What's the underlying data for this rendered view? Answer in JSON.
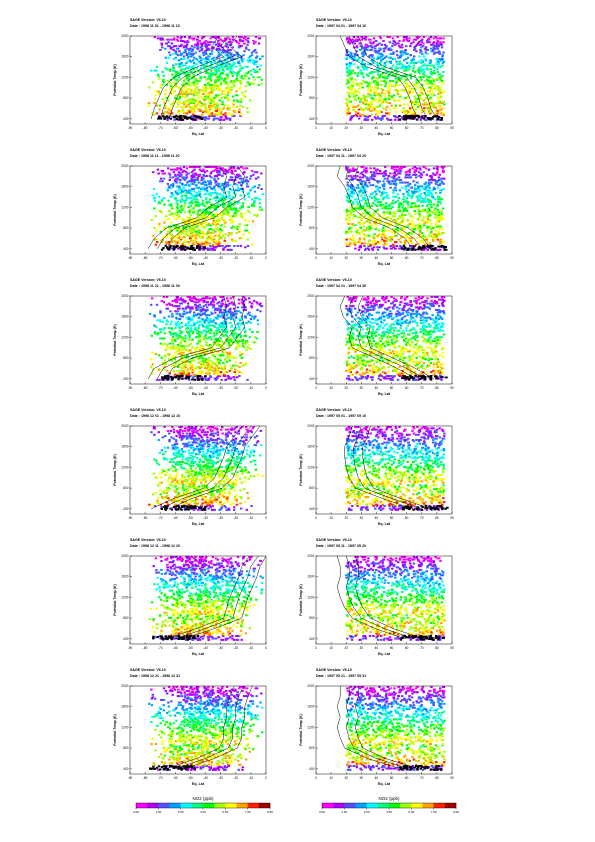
{
  "chart_data": {
    "type": "scatter",
    "description_free": true,
    "panel_common": {
      "title_prefix": "SAGE Version: ",
      "date_prefix": "Date : ",
      "xlabel": "Eq. Lat",
      "ylabel": "Potential Temp (K)",
      "yticks": [
        400,
        800,
        1200,
        1600,
        2000
      ],
      "ylim": [
        300,
        2000
      ]
    },
    "left_xlim": [
      -90,
      0
    ],
    "left_xticks": [
      -90,
      -80,
      -70,
      -60,
      -50,
      -40,
      -30,
      -20,
      -10,
      0
    ],
    "right_xlim": [
      0,
      90
    ],
    "right_xticks": [
      0,
      10,
      20,
      30,
      40,
      50,
      60,
      70,
      80,
      90
    ],
    "panels": [
      {
        "side": "left",
        "version": "V6.10",
        "date": "1998 11 01 - 1998 11 10",
        "band_eqlat": -57,
        "mean_lines": [
          [
            -25,
            2000
          ],
          [
            -30,
            1800
          ],
          [
            -22,
            1600
          ],
          [
            -40,
            1400
          ],
          [
            -55,
            1200
          ],
          [
            -62,
            1000
          ],
          [
            -65,
            800
          ],
          [
            -68,
            600
          ],
          [
            -70,
            400
          ]
        ]
      },
      {
        "side": "right",
        "version": "V6.10",
        "date": "1997 04 01 - 1997 04 10",
        "band_eqlat": 70,
        "mean_lines": [
          [
            22,
            2000
          ],
          [
            25,
            1800
          ],
          [
            28,
            1600
          ],
          [
            40,
            1400
          ],
          [
            60,
            1200
          ],
          [
            65,
            1000
          ],
          [
            68,
            800
          ],
          [
            70,
            600
          ],
          [
            74,
            400
          ]
        ]
      },
      {
        "side": "left",
        "version": "V6.10",
        "date": "1998 11 11 - 1998 11 20",
        "band_eqlat": -55,
        "mean_lines": [
          [
            -25,
            2000
          ],
          [
            -20,
            1800
          ],
          [
            -22,
            1600
          ],
          [
            -20,
            1400
          ],
          [
            -32,
            1200
          ],
          [
            -40,
            1000
          ],
          [
            -60,
            800
          ],
          [
            -68,
            600
          ],
          [
            -72,
            400
          ]
        ]
      },
      {
        "side": "right",
        "version": "V6.10",
        "date": "1997 04 11 - 1997 04 20",
        "band_eqlat": 72,
        "mean_lines": [
          [
            22,
            2000
          ],
          [
            20,
            1800
          ],
          [
            25,
            1600
          ],
          [
            28,
            1400
          ],
          [
            30,
            1200
          ],
          [
            38,
            1000
          ],
          [
            55,
            800
          ],
          [
            65,
            600
          ],
          [
            70,
            400
          ]
        ]
      },
      {
        "side": "left",
        "version": "V6.10",
        "date": "1998 11 21 - 1998 11 30",
        "band_eqlat": -55,
        "mean_lines": [
          [
            -22,
            2000
          ],
          [
            -20,
            1800
          ],
          [
            -22,
            1600
          ],
          [
            -20,
            1400
          ],
          [
            -25,
            1200
          ],
          [
            -30,
            1000
          ],
          [
            -55,
            800
          ],
          [
            -68,
            600
          ],
          [
            -72,
            400
          ]
        ]
      },
      {
        "side": "right",
        "version": "V6.10",
        "date": "1997 04 21 - 1997 04 30",
        "band_eqlat": 72,
        "mean_lines": [
          [
            25,
            2000
          ],
          [
            22,
            1800
          ],
          [
            24,
            1600
          ],
          [
            30,
            1400
          ],
          [
            28,
            1200
          ],
          [
            30,
            1000
          ],
          [
            45,
            800
          ],
          [
            60,
            600
          ],
          [
            72,
            400
          ]
        ]
      },
      {
        "side": "left",
        "version": "V6.10",
        "date": "1998 12 01 - 1998 12 10",
        "band_eqlat": -55,
        "mean_lines": [
          [
            -10,
            2000
          ],
          [
            -15,
            1800
          ],
          [
            -20,
            1600
          ],
          [
            -22,
            1400
          ],
          [
            -25,
            1200
          ],
          [
            -28,
            1000
          ],
          [
            -35,
            800
          ],
          [
            -55,
            600
          ],
          [
            -70,
            400
          ]
        ]
      },
      {
        "side": "right",
        "version": "V6.10",
        "date": "1997 05 01 - 1997 05 10",
        "band_eqlat": 72,
        "mean_lines": [
          [
            30,
            2000
          ],
          [
            28,
            1800
          ],
          [
            25,
            1600
          ],
          [
            25,
            1400
          ],
          [
            26,
            1200
          ],
          [
            28,
            1000
          ],
          [
            32,
            800
          ],
          [
            50,
            600
          ],
          [
            70,
            400
          ]
        ]
      },
      {
        "side": "left",
        "version": "V6.10",
        "date": "1998 12 11 - 1998 12 20",
        "band_eqlat": -60,
        "mean_lines": [
          [
            -5,
            2000
          ],
          [
            -10,
            1800
          ],
          [
            -12,
            1600
          ],
          [
            -15,
            1400
          ],
          [
            -18,
            1200
          ],
          [
            -20,
            1000
          ],
          [
            -22,
            800
          ],
          [
            -40,
            600
          ],
          [
            -60,
            400
          ]
        ]
      },
      {
        "side": "right",
        "version": "V6.10",
        "date": "1997 05 11 - 1997 05 20",
        "band_eqlat": 70,
        "mean_lines": [
          [
            20,
            2000
          ],
          [
            22,
            1800
          ],
          [
            22,
            1600
          ],
          [
            20,
            1400
          ],
          [
            22,
            1200
          ],
          [
            25,
            1000
          ],
          [
            30,
            800
          ],
          [
            45,
            600
          ],
          [
            65,
            400
          ]
        ]
      },
      {
        "side": "left",
        "version": "V6.10",
        "date": "1998 12 21 - 1998 12 31",
        "band_eqlat": -62,
        "mean_lines": [
          [
            -15,
            2000
          ],
          [
            -18,
            1800
          ],
          [
            -20,
            1600
          ],
          [
            -20,
            1400
          ],
          [
            -22,
            1200
          ],
          [
            -22,
            1000
          ],
          [
            -25,
            800
          ],
          [
            -40,
            600
          ],
          [
            -60,
            400
          ]
        ]
      },
      {
        "side": "right",
        "version": "V6.10",
        "date": "1997 05 21 - 1997 05 31",
        "band_eqlat": 70,
        "mean_lines": [
          [
            22,
            2000
          ],
          [
            22,
            1800
          ],
          [
            20,
            1600
          ],
          [
            22,
            1400
          ],
          [
            20,
            1200
          ],
          [
            22,
            1000
          ],
          [
            25,
            800
          ],
          [
            40,
            600
          ],
          [
            62,
            400
          ]
        ]
      }
    ],
    "colorbars": [
      {
        "label": "NO2 (ppb)",
        "ticks": [
          "0.00",
          "1.00",
          "2.50",
          "4.00",
          "5.50",
          "7.00",
          "8.50"
        ],
        "range": [
          0,
          8.5
        ]
      },
      {
        "label": "NO2 (ppb)",
        "ticks": [
          "0.00",
          "1.50",
          "3.00",
          "4.50",
          "6.00",
          "7.50",
          "9.00"
        ],
        "range": [
          0,
          9
        ]
      }
    ],
    "colormap": [
      "#ff00ff",
      "#b000ff",
      "#5050ff",
      "#00a0ff",
      "#00ffff",
      "#00ff80",
      "#00ff00",
      "#a0ff00",
      "#ffff00",
      "#ffa000",
      "#ff2000",
      "#a00000"
    ]
  }
}
